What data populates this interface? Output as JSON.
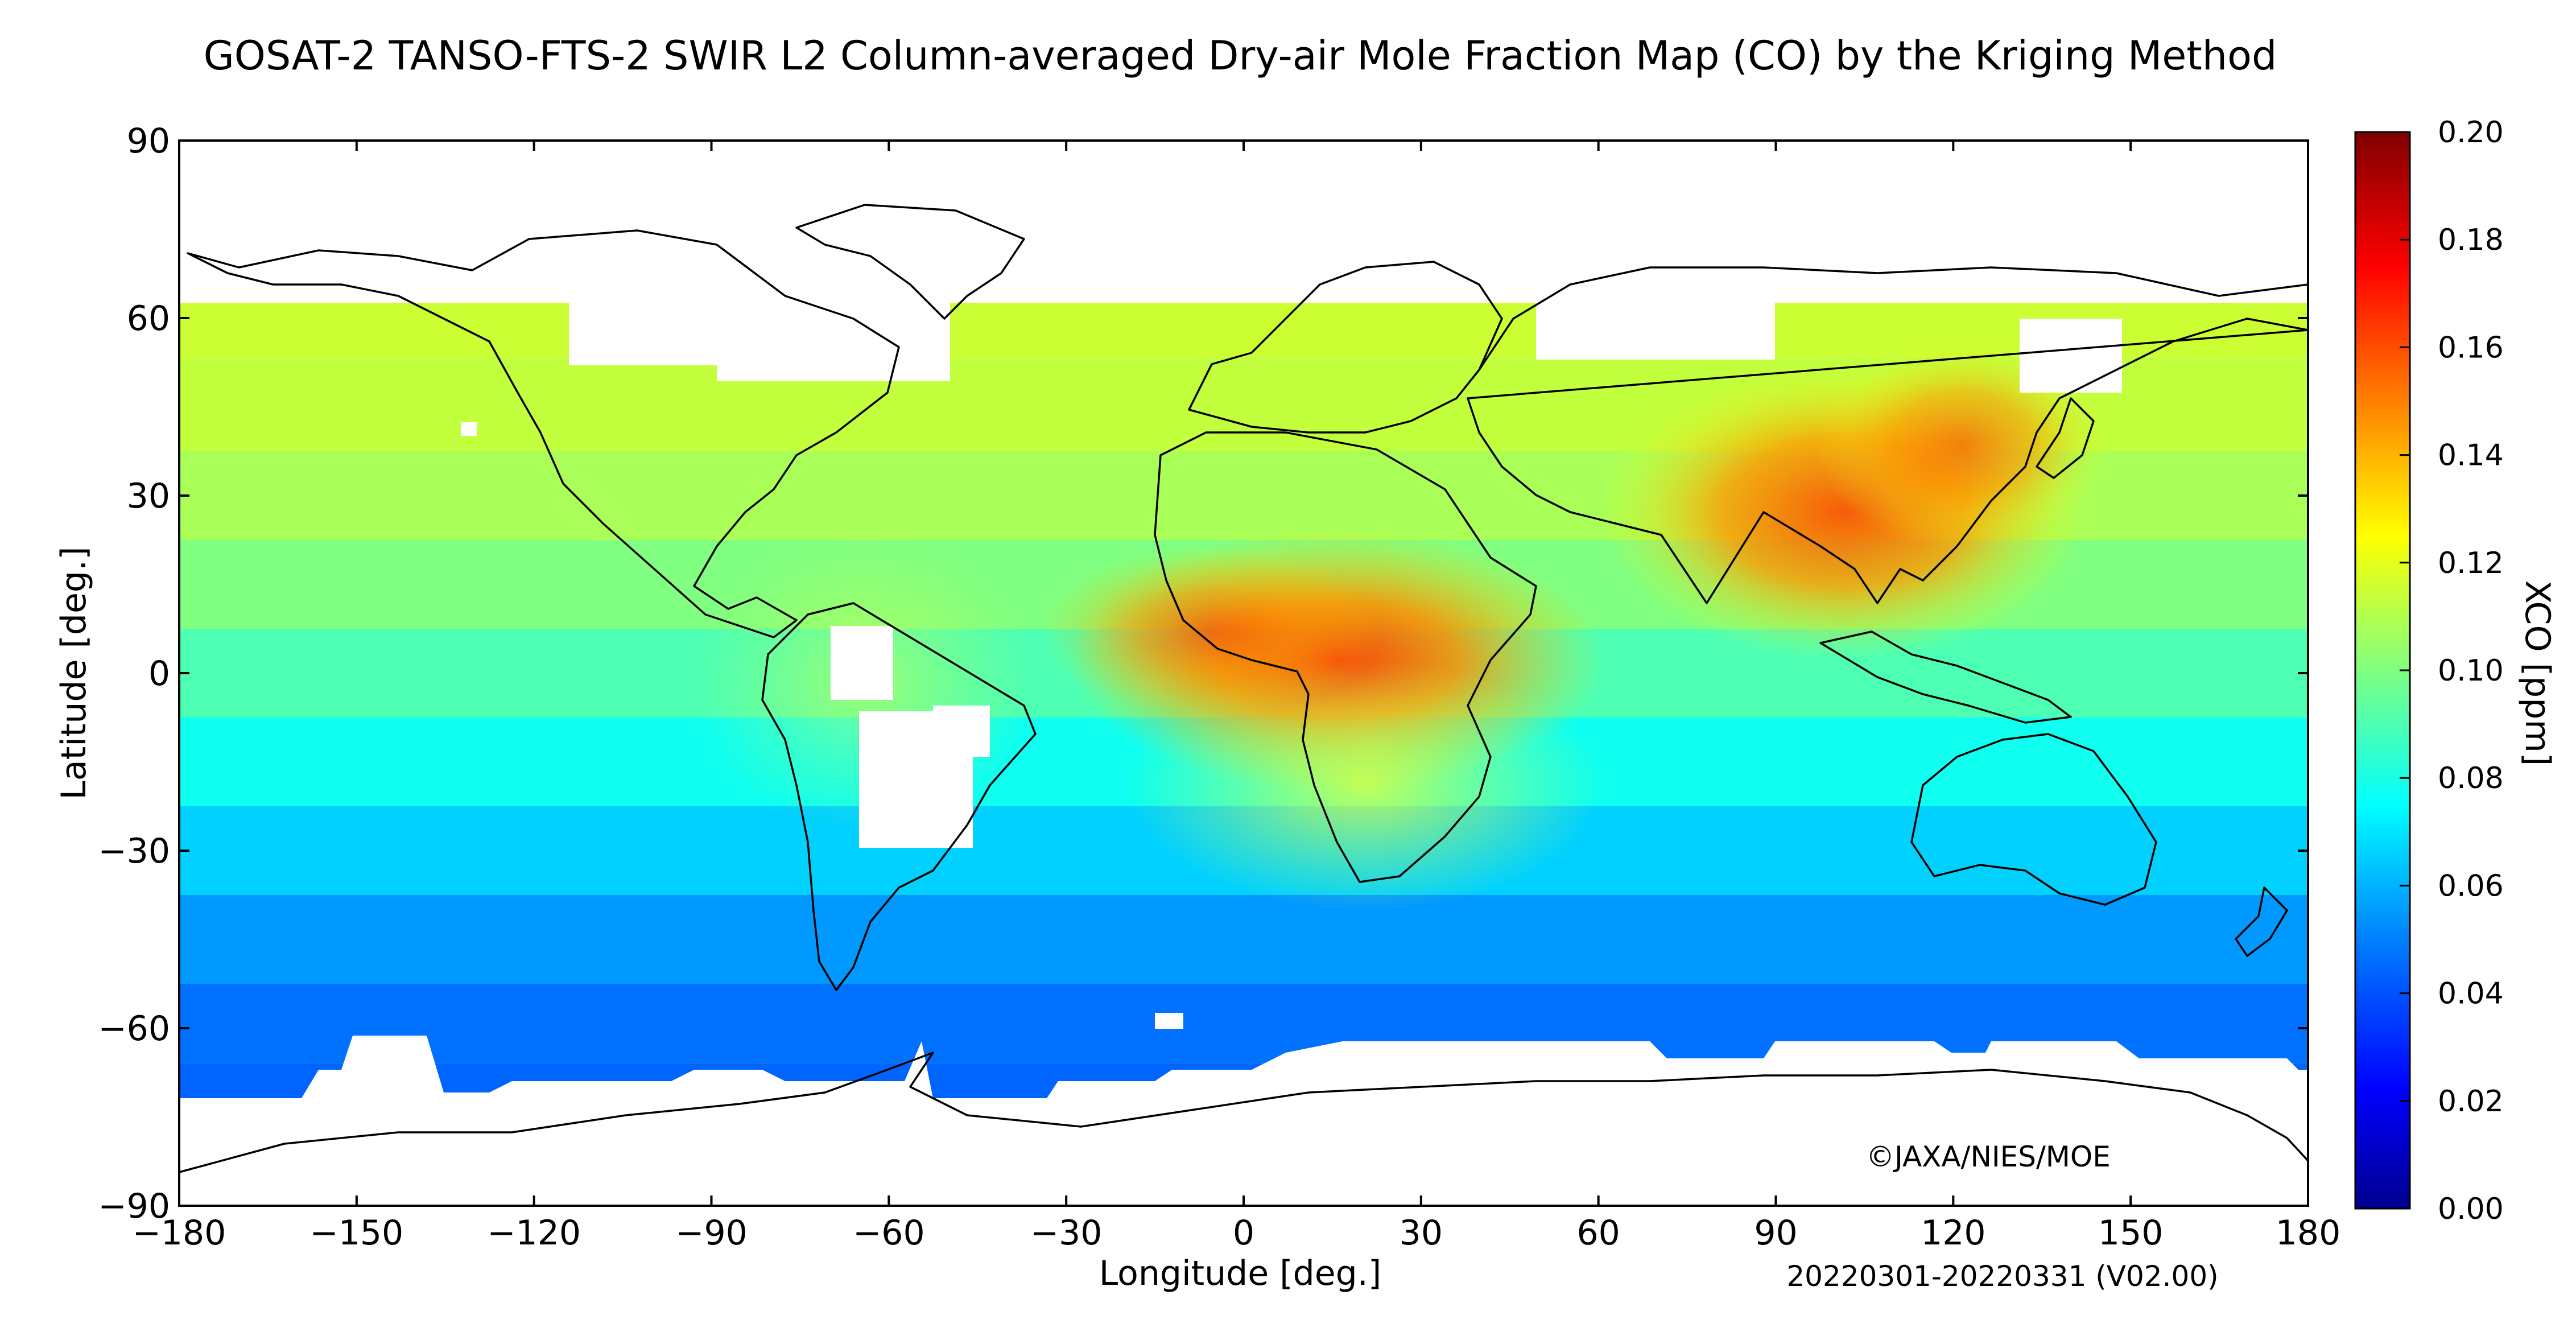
{
  "title": "GOSAT-2 TANSO-FTS-2 SWIR L2 Column-averaged Dry-air Mole Fraction Map (CO) by the Kriging Method",
  "x_axis": {
    "label": "Longitude [deg.]",
    "ticks": [
      -180,
      -150,
      -120,
      -90,
      -60,
      -30,
      0,
      30,
      60,
      90,
      120,
      150,
      180
    ],
    "tick_labels": [
      "−180",
      "−150",
      "−120",
      "−90",
      "−60",
      "−30",
      "0",
      "30",
      "60",
      "90",
      "120",
      "150",
      "180"
    ]
  },
  "y_axis": {
    "label": "Latitude [deg.]",
    "ticks": [
      -90,
      -60,
      -30,
      0,
      30,
      60,
      90
    ],
    "tick_labels": [
      "−90",
      "−60",
      "−30",
      "0",
      "30",
      "60",
      "90"
    ]
  },
  "colorbar": {
    "label": "XCO [ppm]",
    "range": [
      0.0,
      0.2
    ],
    "ticks": [
      0.0,
      0.02,
      0.04,
      0.06,
      0.08,
      0.1,
      0.12,
      0.14,
      0.16,
      0.18,
      0.2
    ],
    "tick_labels": [
      "0.00",
      "0.02",
      "0.04",
      "0.06",
      "0.08",
      "0.10",
      "0.12",
      "0.14",
      "0.16",
      "0.18",
      "0.20"
    ],
    "colormap": "jet",
    "stops": [
      "#00008f",
      "#0000ff",
      "#0080ff",
      "#00ffff",
      "#80ff80",
      "#ffff00",
      "#ff8000",
      "#ff0000",
      "#800000"
    ]
  },
  "copyright": "©JAXA/NIES/MOE",
  "date_version": "20220301-20220331 (V02.00)",
  "chart_data": {
    "type": "heatmap",
    "title": "GOSAT-2 TANSO-FTS-2 SWIR L2 Column-averaged Dry-air Mole Fraction Map (CO) by the Kriging Method",
    "xlabel": "Longitude [deg.]",
    "ylabel": "Latitude [deg.]",
    "xlim": [
      -180,
      180
    ],
    "ylim": [
      -90,
      90
    ],
    "value_label": "XCO [ppm]",
    "value_range": [
      0.0,
      0.2
    ],
    "grid": false,
    "latitude_profile": [
      {
        "lat": 62,
        "value": 0.115
      },
      {
        "lat": 45,
        "value": 0.113
      },
      {
        "lat": 30,
        "value": 0.108
      },
      {
        "lat": 15,
        "value": 0.1
      },
      {
        "lat": 0,
        "value": 0.09
      },
      {
        "lat": -15,
        "value": 0.078
      },
      {
        "lat": -30,
        "value": 0.066
      },
      {
        "lat": -45,
        "value": 0.055
      },
      {
        "lat": -60,
        "value": 0.047
      },
      {
        "lat": -72,
        "value": 0.044
      }
    ],
    "hotspots": [
      {
        "region": "Central Africa",
        "lon": 20,
        "lat": 0,
        "value": 0.17
      },
      {
        "region": "West Africa",
        "lon": 0,
        "lat": 7,
        "value": 0.155
      },
      {
        "region": "South and East Asia",
        "lon": 100,
        "lat": 28,
        "value": 0.16
      },
      {
        "region": "Eastern China",
        "lon": 115,
        "lat": 35,
        "value": 0.15
      }
    ]
  },
  "map_features": [
    "Greenland",
    "North America",
    "South America",
    "Africa",
    "Europe",
    "Asia",
    "Australia",
    "Antarctica"
  ]
}
